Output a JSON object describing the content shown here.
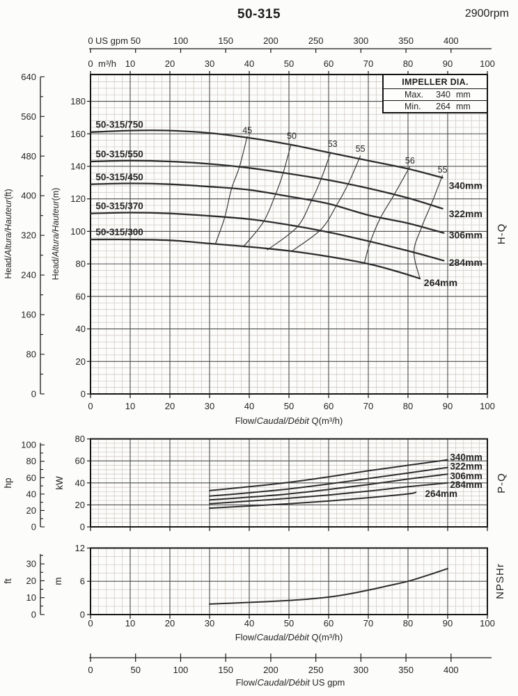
{
  "header": {
    "title": "50-315",
    "rpm": "2900rpm"
  },
  "impeller_box": {
    "title": "IMPELLER DIA.",
    "rows": [
      {
        "label": "Max.",
        "value": "340",
        "unit": "mm"
      },
      {
        "label": "Min.",
        "value": "264",
        "unit": "mm"
      }
    ]
  },
  "chart_data": {
    "type": "line",
    "flow_axis": {
      "range": [
        0,
        100
      ],
      "x_ticks": [
        0,
        10,
        20,
        30,
        40,
        50,
        60,
        70,
        80,
        90,
        100
      ],
      "title_parts": [
        {
          "t": "Flow/"
        },
        {
          "t": "Caudal/Débit",
          "i": true
        },
        {
          "t": " Q(m³/h)"
        }
      ]
    },
    "usgpm_top": {
      "unit": "US gpm",
      "ticks": [
        0,
        50,
        100,
        150,
        200,
        250,
        300,
        350,
        400
      ]
    },
    "m3h_unit": "m³/h",
    "usgpm_bottom": {
      "ticks": [
        0,
        50,
        100,
        150,
        200,
        250,
        300,
        350,
        400
      ],
      "title_parts": [
        {
          "t": "Flow/"
        },
        {
          "t": "Caudal/Débit",
          "i": true
        },
        {
          "t": "   US gpm"
        }
      ]
    },
    "hq": {
      "side_label": "H-Q",
      "m_axis": {
        "max": 196.5,
        "ticks": [
          0,
          20,
          40,
          60,
          80,
          100,
          120,
          140,
          160,
          180
        ],
        "title_parts": [
          {
            "t": "Head/"
          },
          {
            "t": "Altura/Hauteur",
            "i": true
          },
          {
            "t": "(m)"
          }
        ]
      },
      "ft_axis": {
        "ticks": [
          0,
          80,
          160,
          240,
          320,
          400,
          480,
          560,
          640
        ],
        "minor_step": 40,
        "title_parts": [
          {
            "t": "Head/"
          },
          {
            "t": "Altura/Hauteur",
            "i": true
          },
          {
            "t": "(ft)"
          }
        ]
      },
      "series": [
        {
          "model": "50-315/750",
          "dia": "340mm",
          "points": [
            [
              0,
              161
            ],
            [
              10,
              162
            ],
            [
              20,
              162
            ],
            [
              30,
              160.5
            ],
            [
              40,
              157.5
            ],
            [
              50,
              153.5
            ],
            [
              60,
              148.5
            ],
            [
              70,
              143.5
            ],
            [
              80,
              138.5
            ],
            [
              88.7,
              133
            ]
          ],
          "model_label_at": [
            1.3,
            163.8
          ],
          "dia_label_at": [
            90.3,
            128.3
          ]
        },
        {
          "model": "50-315/550",
          "dia": "322mm",
          "points": [
            [
              0,
              143
            ],
            [
              10,
              143.5
            ],
            [
              20,
              143
            ],
            [
              30,
              141.5
            ],
            [
              40,
              139
            ],
            [
              50,
              135.5
            ],
            [
              60,
              131.5
            ],
            [
              70,
              126.5
            ],
            [
              80,
              120.5
            ],
            [
              88.7,
              114
            ]
          ],
          "model_label_at": [
            1.3,
            145.6
          ],
          "dia_label_at": [
            90.3,
            110.9
          ]
        },
        {
          "model": "50-315/450",
          "dia": "306mm",
          "points": [
            [
              0,
              129
            ],
            [
              10,
              129.5
            ],
            [
              20,
              129
            ],
            [
              30,
              127.5
            ],
            [
              40,
              125.5
            ],
            [
              50,
              121.5
            ],
            [
              60,
              117
            ],
            [
              70,
              110
            ],
            [
              80,
              105
            ],
            [
              89,
              99
            ]
          ],
          "model_label_at": [
            1.3,
            131.4
          ],
          "dia_label_at": [
            90.3,
            97.8
          ]
        },
        {
          "model": "50-315/370",
          "dia": "284mm",
          "points": [
            [
              0,
              111
            ],
            [
              10,
              111.5
            ],
            [
              20,
              111
            ],
            [
              30,
              109.5
            ],
            [
              40,
              107.5
            ],
            [
              50,
              104
            ],
            [
              60,
              99.5
            ],
            [
              70,
              94
            ],
            [
              80,
              88
            ],
            [
              89,
              82
            ]
          ],
          "model_label_at": [
            1.3,
            113.6
          ],
          "dia_label_at": [
            90.3,
            81.0
          ]
        },
        {
          "model": "50-315/300",
          "dia": "264mm",
          "points": [
            [
              0,
              95
            ],
            [
              10,
              95
            ],
            [
              20,
              94.5
            ],
            [
              30,
              92.5
            ],
            [
              40,
              90.5
            ],
            [
              50,
              88
            ],
            [
              60,
              84.5
            ],
            [
              70,
              80
            ],
            [
              77,
              75.5
            ],
            [
              83,
              71
            ]
          ],
          "model_label_at": [
            1.3,
            97.6
          ],
          "dia_label_at": [
            84.0,
            68.6
          ]
        }
      ],
      "efficiency_contours": [
        {
          "label": "45",
          "label_at": [
            39.5,
            160.3
          ],
          "points": [
            [
              39.5,
              158.5
            ],
            [
              37.5,
              139.5
            ],
            [
              35.5,
              126
            ],
            [
              33.8,
              108.5
            ],
            [
              31.5,
              92.5
            ]
          ]
        },
        {
          "label": "50",
          "label_at": [
            50.7,
            156.8
          ],
          "points": [
            [
              50.5,
              153.5
            ],
            [
              48.5,
              135.5
            ],
            [
              46.5,
              122
            ],
            [
              43.5,
              105.5
            ],
            [
              38.5,
              90.5
            ]
          ]
        },
        {
          "label": "53",
          "label_at": [
            61.0,
            152.0
          ],
          "points": [
            [
              60.5,
              148.5
            ],
            [
              58,
              131.5
            ],
            [
              55.5,
              118
            ],
            [
              52,
              102.5
            ],
            [
              44.5,
              88.5
            ]
          ]
        },
        {
          "label": "55",
          "label_at": [
            68.0,
            149.0
          ],
          "points": [
            [
              68,
              146.5
            ],
            [
              65,
              129.5
            ],
            [
              62,
              116
            ],
            [
              58,
              101
            ],
            [
              50.5,
              87.5
            ]
          ]
        },
        {
          "label": "56",
          "label_at": [
            80.5,
            141.8
          ],
          "points": [
            [
              80.5,
              140
            ],
            [
              76.5,
              122.5
            ],
            [
              73,
              108
            ],
            [
              70.5,
              93.5
            ],
            [
              69,
              80.5
            ]
          ]
        },
        {
          "label": "55",
          "label_at": [
            88.7,
            136.2
          ],
          "points": [
            [
              88.7,
              134.5
            ],
            [
              86,
              117.5
            ],
            [
              83.5,
              103
            ],
            [
              81.5,
              87.5
            ],
            [
              83,
              71
            ]
          ]
        }
      ]
    },
    "pq": {
      "side_label": "P-Q",
      "kw_axis": {
        "unit": "kW",
        "max": 80,
        "ticks": [
          0,
          20,
          40,
          60,
          80
        ]
      },
      "hp_axis": {
        "unit": "hp",
        "ticks": [
          0,
          20,
          40,
          60,
          80,
          100
        ]
      },
      "series": [
        {
          "dia": "340mm",
          "points": [
            [
              30,
              33
            ],
            [
              40,
              36.5
            ],
            [
              50,
              40.5
            ],
            [
              60,
              45.5
            ],
            [
              70,
              51
            ],
            [
              80,
              56
            ],
            [
              90,
              61
            ]
          ],
          "label_at": [
            90.6,
            63.2
          ]
        },
        {
          "dia": "322mm",
          "points": [
            [
              30,
              28
            ],
            [
              40,
              31
            ],
            [
              50,
              34.5
            ],
            [
              60,
              39
            ],
            [
              70,
              44
            ],
            [
              80,
              49
            ],
            [
              90,
              54
            ]
          ],
          "label_at": [
            90.6,
            55.0
          ]
        },
        {
          "dia": "306mm",
          "points": [
            [
              30,
              24.5
            ],
            [
              40,
              27
            ],
            [
              50,
              30
            ],
            [
              60,
              34
            ],
            [
              70,
              38.5
            ],
            [
              80,
              43.5
            ],
            [
              90,
              48
            ]
          ],
          "label_at": [
            90.6,
            46.2
          ]
        },
        {
          "dia": "284mm",
          "points": [
            [
              30,
              21
            ],
            [
              40,
              23.5
            ],
            [
              50,
              26
            ],
            [
              60,
              29
            ],
            [
              70,
              32.5
            ],
            [
              80,
              36.5
            ],
            [
              90,
              40
            ]
          ],
          "label_at": [
            90.6,
            38.4
          ]
        },
        {
          "dia": "264mm",
          "points": [
            [
              30,
              17
            ],
            [
              40,
              19
            ],
            [
              50,
              21
            ],
            [
              60,
              23.5
            ],
            [
              70,
              26.5
            ],
            [
              80,
              30
            ],
            [
              82,
              31.5
            ]
          ],
          "label_at": [
            84.3,
            30.2
          ]
        }
      ]
    },
    "npshr": {
      "side_label": "NPSHr",
      "m_axis": {
        "unit": "m",
        "max": 12,
        "ticks": [
          0,
          6,
          12
        ],
        "minor_step": 1.5
      },
      "ft_axis": {
        "unit": "ft",
        "ticks": [
          0,
          10,
          20,
          30
        ],
        "minor_step": 5
      },
      "curve": [
        [
          30,
          1.9
        ],
        [
          35,
          2.05
        ],
        [
          40,
          2.2
        ],
        [
          45,
          2.35
        ],
        [
          50,
          2.55
        ],
        [
          55,
          2.8
        ],
        [
          60,
          3.15
        ],
        [
          65,
          3.7
        ],
        [
          70,
          4.4
        ],
        [
          75,
          5.2
        ],
        [
          80,
          6.0
        ],
        [
          85,
          7.1
        ],
        [
          90,
          8.3
        ]
      ]
    }
  }
}
